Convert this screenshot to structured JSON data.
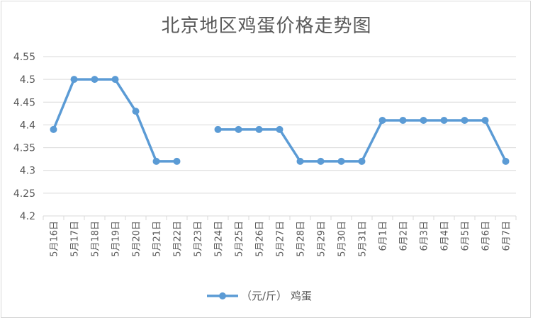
{
  "chart_data": {
    "type": "line",
    "title": "北京地区鸡蛋价格走势图",
    "xlabel": "",
    "ylabel": "",
    "categories": [
      "5月16日",
      "5月17日",
      "5月18日",
      "5月19日",
      "5月20日",
      "5月21日",
      "5月22日",
      "5月23日",
      "5月24日",
      "5月25日",
      "5月26日",
      "5月27日",
      "5月28日",
      "5月29日",
      "5月30日",
      "5月31日",
      "6月1日",
      "6月2日",
      "6月3日",
      "6月4日",
      "6月5日",
      "6月6日",
      "6月7日"
    ],
    "series": [
      {
        "name": "（元/斤） 鸡蛋",
        "values": [
          4.39,
          4.5,
          4.5,
          4.5,
          4.43,
          4.32,
          4.32,
          null,
          4.39,
          4.39,
          4.39,
          4.39,
          4.32,
          4.32,
          4.32,
          4.32,
          4.41,
          4.41,
          4.41,
          4.41,
          4.41,
          4.41,
          4.32
        ]
      }
    ],
    "ylim": [
      4.2,
      4.55
    ],
    "yticks": [
      "4.2",
      "4.25",
      "4.3",
      "4.35",
      "4.4",
      "4.45",
      "4.5",
      "4.55"
    ],
    "grid": true,
    "legend": "bottom",
    "colors": {
      "series": "#5b9bd5",
      "grid": "#d9d9d9",
      "text": "#595959"
    }
  }
}
